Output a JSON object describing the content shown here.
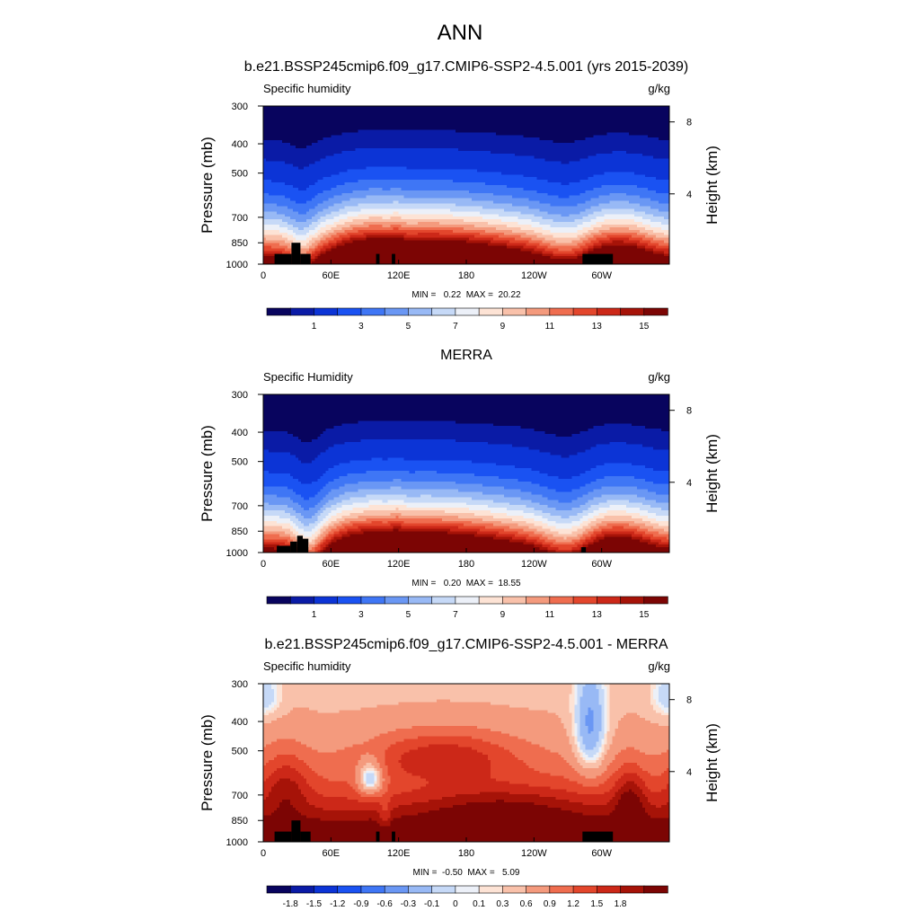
{
  "figure_title": "ANN",
  "colors": {
    "abs_scale": [
      "#08045e",
      "#0a1ba6",
      "#0c34d6",
      "#1a52f2",
      "#3f76f5",
      "#6a97f4",
      "#98b9f5",
      "#c6d9f7",
      "#ecf0f8",
      "#fde3d5",
      "#f9c1aa",
      "#f49a7d",
      "#ef6d4f",
      "#e3462c",
      "#cc2818",
      "#a61308",
      "#7c0504"
    ],
    "diff_scale": [
      "#08045e",
      "#0a1ba6",
      "#0c34d6",
      "#1a52f2",
      "#3f76f5",
      "#6a97f4",
      "#98b9f5",
      "#c6d9f7",
      "#ecf0f8",
      "#fde3d5",
      "#f9c1aa",
      "#f49a7d",
      "#ef6d4f",
      "#e3462c",
      "#cc2818",
      "#a61308",
      "#7c0504"
    ],
    "terrain": "#000000"
  },
  "chart_data": [
    {
      "type": "heatmap",
      "panel": "model",
      "title": "b.e21.BSSP245cmip6.f09_g17.CMIP6-SSP2-4.5.001 (yrs 2015-2039)",
      "left_label": "Specific humidity",
      "right_label": "g/kg",
      "ylabel": "Pressure (mb)",
      "y2label": "Height (km)",
      "x_ticks": [
        "0",
        "60E",
        "120E",
        "180",
        "120W",
        "60W"
      ],
      "x_tick_lon": [
        0,
        60,
        120,
        180,
        240,
        300
      ],
      "xlim": [
        0,
        360
      ],
      "y_ticks": [
        "300",
        "400",
        "500",
        "700",
        "850",
        "1000"
      ],
      "y_tick_p": [
        300,
        400,
        500,
        700,
        850,
        1000
      ],
      "ylim": [
        1000,
        300
      ],
      "y2_ticks": [
        "8",
        "4"
      ],
      "y2_tick_km": [
        8,
        4
      ],
      "stats": "MIN =   0.22  MAX =  20.22",
      "field": "abs",
      "colorbar_labels": [
        "1",
        "3",
        "5",
        "7",
        "9",
        "11",
        "13",
        "15"
      ],
      "levels": [
        0.5,
        1,
        2,
        3,
        4,
        5,
        6,
        7,
        8,
        9,
        10,
        11,
        12,
        13,
        14,
        15
      ],
      "terrain": [
        [
          10,
          25,
          925
        ],
        [
          25,
          33,
          850
        ],
        [
          33,
          42,
          925
        ],
        [
          100,
          103,
          925
        ],
        [
          114,
          117,
          925
        ],
        [
          283,
          310,
          925
        ]
      ]
    },
    {
      "type": "heatmap",
      "panel": "obs",
      "title": "MERRA",
      "left_label": "Specific Humidity",
      "right_label": "g/kg",
      "ylabel": "Pressure (mb)",
      "y2label": "Height (km)",
      "x_ticks": [
        "0",
        "60E",
        "120E",
        "180",
        "120W",
        "60W"
      ],
      "x_tick_lon": [
        0,
        60,
        120,
        180,
        240,
        300
      ],
      "xlim": [
        0,
        360
      ],
      "y_ticks": [
        "300",
        "400",
        "500",
        "700",
        "850",
        "1000"
      ],
      "y_tick_p": [
        300,
        400,
        500,
        700,
        850,
        1000
      ],
      "ylim": [
        1000,
        300
      ],
      "y2_ticks": [
        "8",
        "4"
      ],
      "y2_tick_km": [
        8,
        4
      ],
      "stats": "MIN =   0.20  MAX =  18.55",
      "field": "abs_obs",
      "colorbar_labels": [
        "1",
        "3",
        "5",
        "7",
        "9",
        "11",
        "13",
        "15"
      ],
      "levels": [
        0.5,
        1,
        2,
        3,
        4,
        5,
        6,
        7,
        8,
        9,
        10,
        11,
        12,
        13,
        14,
        15
      ],
      "terrain": [
        [
          12,
          24,
          950
        ],
        [
          24,
          30,
          920
        ],
        [
          30,
          35,
          880
        ],
        [
          35,
          40,
          900
        ],
        [
          282,
          286,
          960
        ]
      ]
    },
    {
      "type": "heatmap",
      "panel": "diff",
      "title": "b.e21.BSSP245cmip6.f09_g17.CMIP6-SSP2-4.5.001 - MERRA",
      "left_label": "Specific humidity",
      "right_label": "g/kg",
      "ylabel": "Pressure (mb)",
      "y2label": "Height (km)",
      "x_ticks": [
        "0",
        "60E",
        "120E",
        "180",
        "120W",
        "60W"
      ],
      "x_tick_lon": [
        0,
        60,
        120,
        180,
        240,
        300
      ],
      "xlim": [
        0,
        360
      ],
      "y_ticks": [
        "300",
        "400",
        "500",
        "700",
        "850",
        "1000"
      ],
      "y_tick_p": [
        300,
        400,
        500,
        700,
        850,
        1000
      ],
      "ylim": [
        1000,
        300
      ],
      "y2_ticks": [
        "8",
        "4"
      ],
      "y2_tick_km": [
        8,
        4
      ],
      "stats": "MIN =  -0.50  MAX =   5.09",
      "field": "diff",
      "colorbar_labels": [
        "-1.8",
        "-1.5",
        "-1.2",
        "-0.9",
        "-0.6",
        "-0.3",
        "-0.1",
        "0",
        "0.1",
        "0.3",
        "0.6",
        "0.9",
        "1.2",
        "1.5",
        "1.8"
      ],
      "levels": [
        -2.1,
        -1.8,
        -1.5,
        -1.2,
        -0.9,
        -0.6,
        -0.3,
        -0.1,
        0,
        0.1,
        0.3,
        0.6,
        0.9,
        1.2,
        1.5,
        1.8
      ],
      "terrain": [
        [
          10,
          25,
          925
        ],
        [
          25,
          33,
          850
        ],
        [
          33,
          42,
          925
        ],
        [
          100,
          103,
          925
        ],
        [
          114,
          117,
          925
        ],
        [
          283,
          310,
          925
        ]
      ]
    }
  ]
}
